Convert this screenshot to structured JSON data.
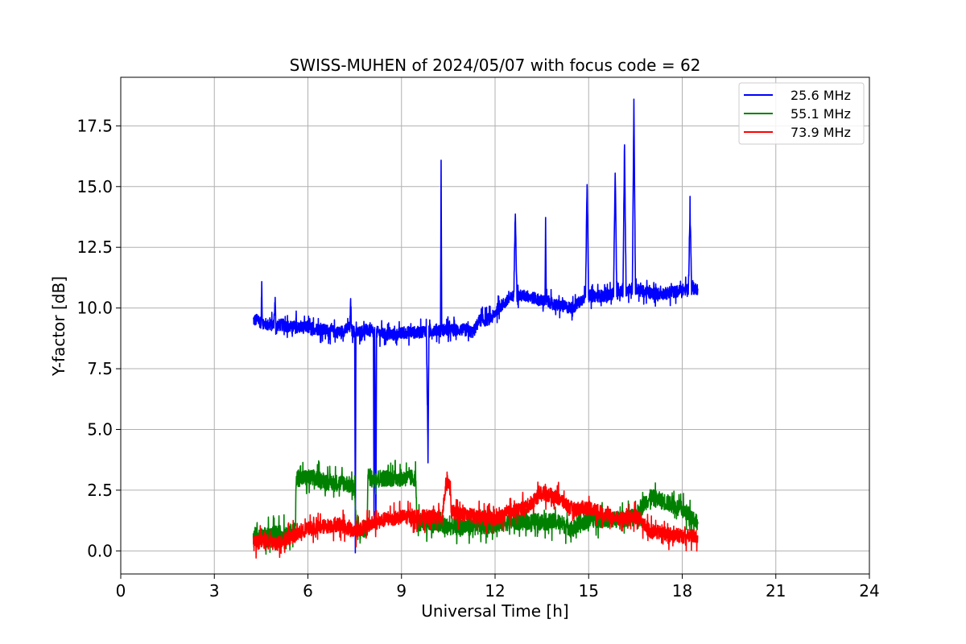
{
  "chart_data": {
    "type": "line",
    "title": "SWISS-MUHEN of 2024/05/07 with focus code = 62",
    "xlabel": "Universal Time [h]",
    "ylabel": "Y-factor [dB]",
    "xlim": [
      0,
      24
    ],
    "ylim": [
      -0.95,
      19.5
    ],
    "xticks": [
      0,
      3,
      6,
      9,
      12,
      15,
      18,
      21,
      24
    ],
    "yticks": [
      0.0,
      2.5,
      5.0,
      7.5,
      10.0,
      12.5,
      15.0,
      17.5
    ],
    "xtick_labels": [
      "0",
      "3",
      "6",
      "9",
      "12",
      "15",
      "18",
      "21",
      "24"
    ],
    "ytick_labels": [
      "0.0",
      "2.5",
      "5.0",
      "7.5",
      "10.0",
      "12.5",
      "15.0",
      "17.5"
    ],
    "grid": true,
    "legend_position": "top-right",
    "series": [
      {
        "name": "25.6 MHz",
        "color": "#0000ff",
        "noise": 0.25,
        "x": [
          4.25,
          4.4,
          4.5,
          4.52,
          4.54,
          4.7,
          4.9,
          4.95,
          4.97,
          5.2,
          5.5,
          5.6,
          5.62,
          5.64,
          6.0,
          6.5,
          7.0,
          7.2,
          7.35,
          7.37,
          7.4,
          7.5,
          7.52,
          7.54,
          7.56,
          7.6,
          7.9,
          8.05,
          8.1,
          8.12,
          8.14,
          8.18,
          8.2,
          8.22,
          8.5,
          8.8,
          9.2,
          9.6,
          9.8,
          9.85,
          9.88,
          9.9,
          10.0,
          10.2,
          10.25,
          10.27,
          10.29,
          10.5,
          11.0,
          11.3,
          11.5,
          11.7,
          11.9,
          12.0,
          12.1,
          12.3,
          12.6,
          12.65,
          12.7,
          13.0,
          13.5,
          13.6,
          13.62,
          13.64,
          14.0,
          14.5,
          14.9,
          14.95,
          15.0,
          15.5,
          15.8,
          15.85,
          15.9,
          16.1,
          16.15,
          16.2,
          16.4,
          16.45,
          16.5,
          16.7,
          17.0,
          17.5,
          17.9,
          18.2,
          18.25,
          18.3,
          18.5
        ],
        "y": [
          9.5,
          9.5,
          9.4,
          11.0,
          9.4,
          9.3,
          9.3,
          10.3,
          9.3,
          9.3,
          9.2,
          9.2,
          9.6,
          9.2,
          9.2,
          9.1,
          9.0,
          9.1,
          9.2,
          10.3,
          9.1,
          9.0,
          0.1,
          9.0,
          9.0,
          9.0,
          9.1,
          9.0,
          9.0,
          1.0,
          9.0,
          1.0,
          9.0,
          9.0,
          8.9,
          8.9,
          9.0,
          9.0,
          9.1,
          3.8,
          9.0,
          9.0,
          9.1,
          9.1,
          9.1,
          16.0,
          9.1,
          9.1,
          9.1,
          9.0,
          9.5,
          9.5,
          9.6,
          9.8,
          10.0,
          10.2,
          10.5,
          14.1,
          10.5,
          10.5,
          10.3,
          10.3,
          13.5,
          10.3,
          10.1,
          10.0,
          10.5,
          15.3,
          10.5,
          10.5,
          10.6,
          15.8,
          10.6,
          10.7,
          16.7,
          10.7,
          10.8,
          18.5,
          10.8,
          10.7,
          10.6,
          10.6,
          10.7,
          10.8,
          14.2,
          10.8,
          10.8
        ]
      },
      {
        "name": "55.1 MHz",
        "color": "#008000",
        "noise": 0.35,
        "x": [
          4.25,
          4.5,
          5.0,
          5.5,
          5.6,
          5.62,
          5.8,
          6.2,
          6.8,
          7.2,
          7.5,
          7.55,
          7.7,
          7.9,
          7.92,
          8.0,
          8.5,
          9.0,
          9.45,
          9.5,
          10.0,
          10.5,
          11.0,
          11.5,
          12.0,
          12.5,
          13.0,
          13.5,
          14.0,
          14.5,
          15.0,
          15.5,
          16.0,
          16.5,
          16.8,
          17.0,
          17.5,
          18.0,
          18.5
        ],
        "y": [
          0.5,
          0.6,
          0.7,
          0.8,
          0.8,
          3.0,
          3.0,
          3.0,
          2.8,
          2.8,
          2.6,
          0.8,
          0.8,
          0.9,
          3.1,
          3.0,
          3.0,
          3.0,
          3.0,
          1.2,
          1.1,
          1.0,
          1.0,
          1.0,
          1.1,
          1.2,
          1.2,
          1.2,
          1.2,
          0.9,
          1.3,
          1.3,
          1.3,
          1.4,
          2.0,
          2.2,
          2.0,
          1.7,
          1.2
        ]
      },
      {
        "name": "73.9 MHz",
        "color": "#ff0000",
        "noise": 0.3,
        "x": [
          4.25,
          4.5,
          5.0,
          5.5,
          6.0,
          6.5,
          7.0,
          7.5,
          8.0,
          8.5,
          9.0,
          9.5,
          10.0,
          10.3,
          10.45,
          10.5,
          10.55,
          10.6,
          11.0,
          11.5,
          12.0,
          12.5,
          13.0,
          13.5,
          14.0,
          14.5,
          15.0,
          15.5,
          16.0,
          16.5,
          17.0,
          17.5,
          18.0,
          18.5
        ],
        "y": [
          0.3,
          0.4,
          0.3,
          0.6,
          0.9,
          1.0,
          1.1,
          0.8,
          1.1,
          1.3,
          1.4,
          1.4,
          1.4,
          1.4,
          3.0,
          2.8,
          2.6,
          1.6,
          1.5,
          1.4,
          1.3,
          1.6,
          1.8,
          2.4,
          2.2,
          1.7,
          1.8,
          1.5,
          1.3,
          1.4,
          0.8,
          0.7,
          0.6,
          0.6
        ]
      }
    ]
  }
}
